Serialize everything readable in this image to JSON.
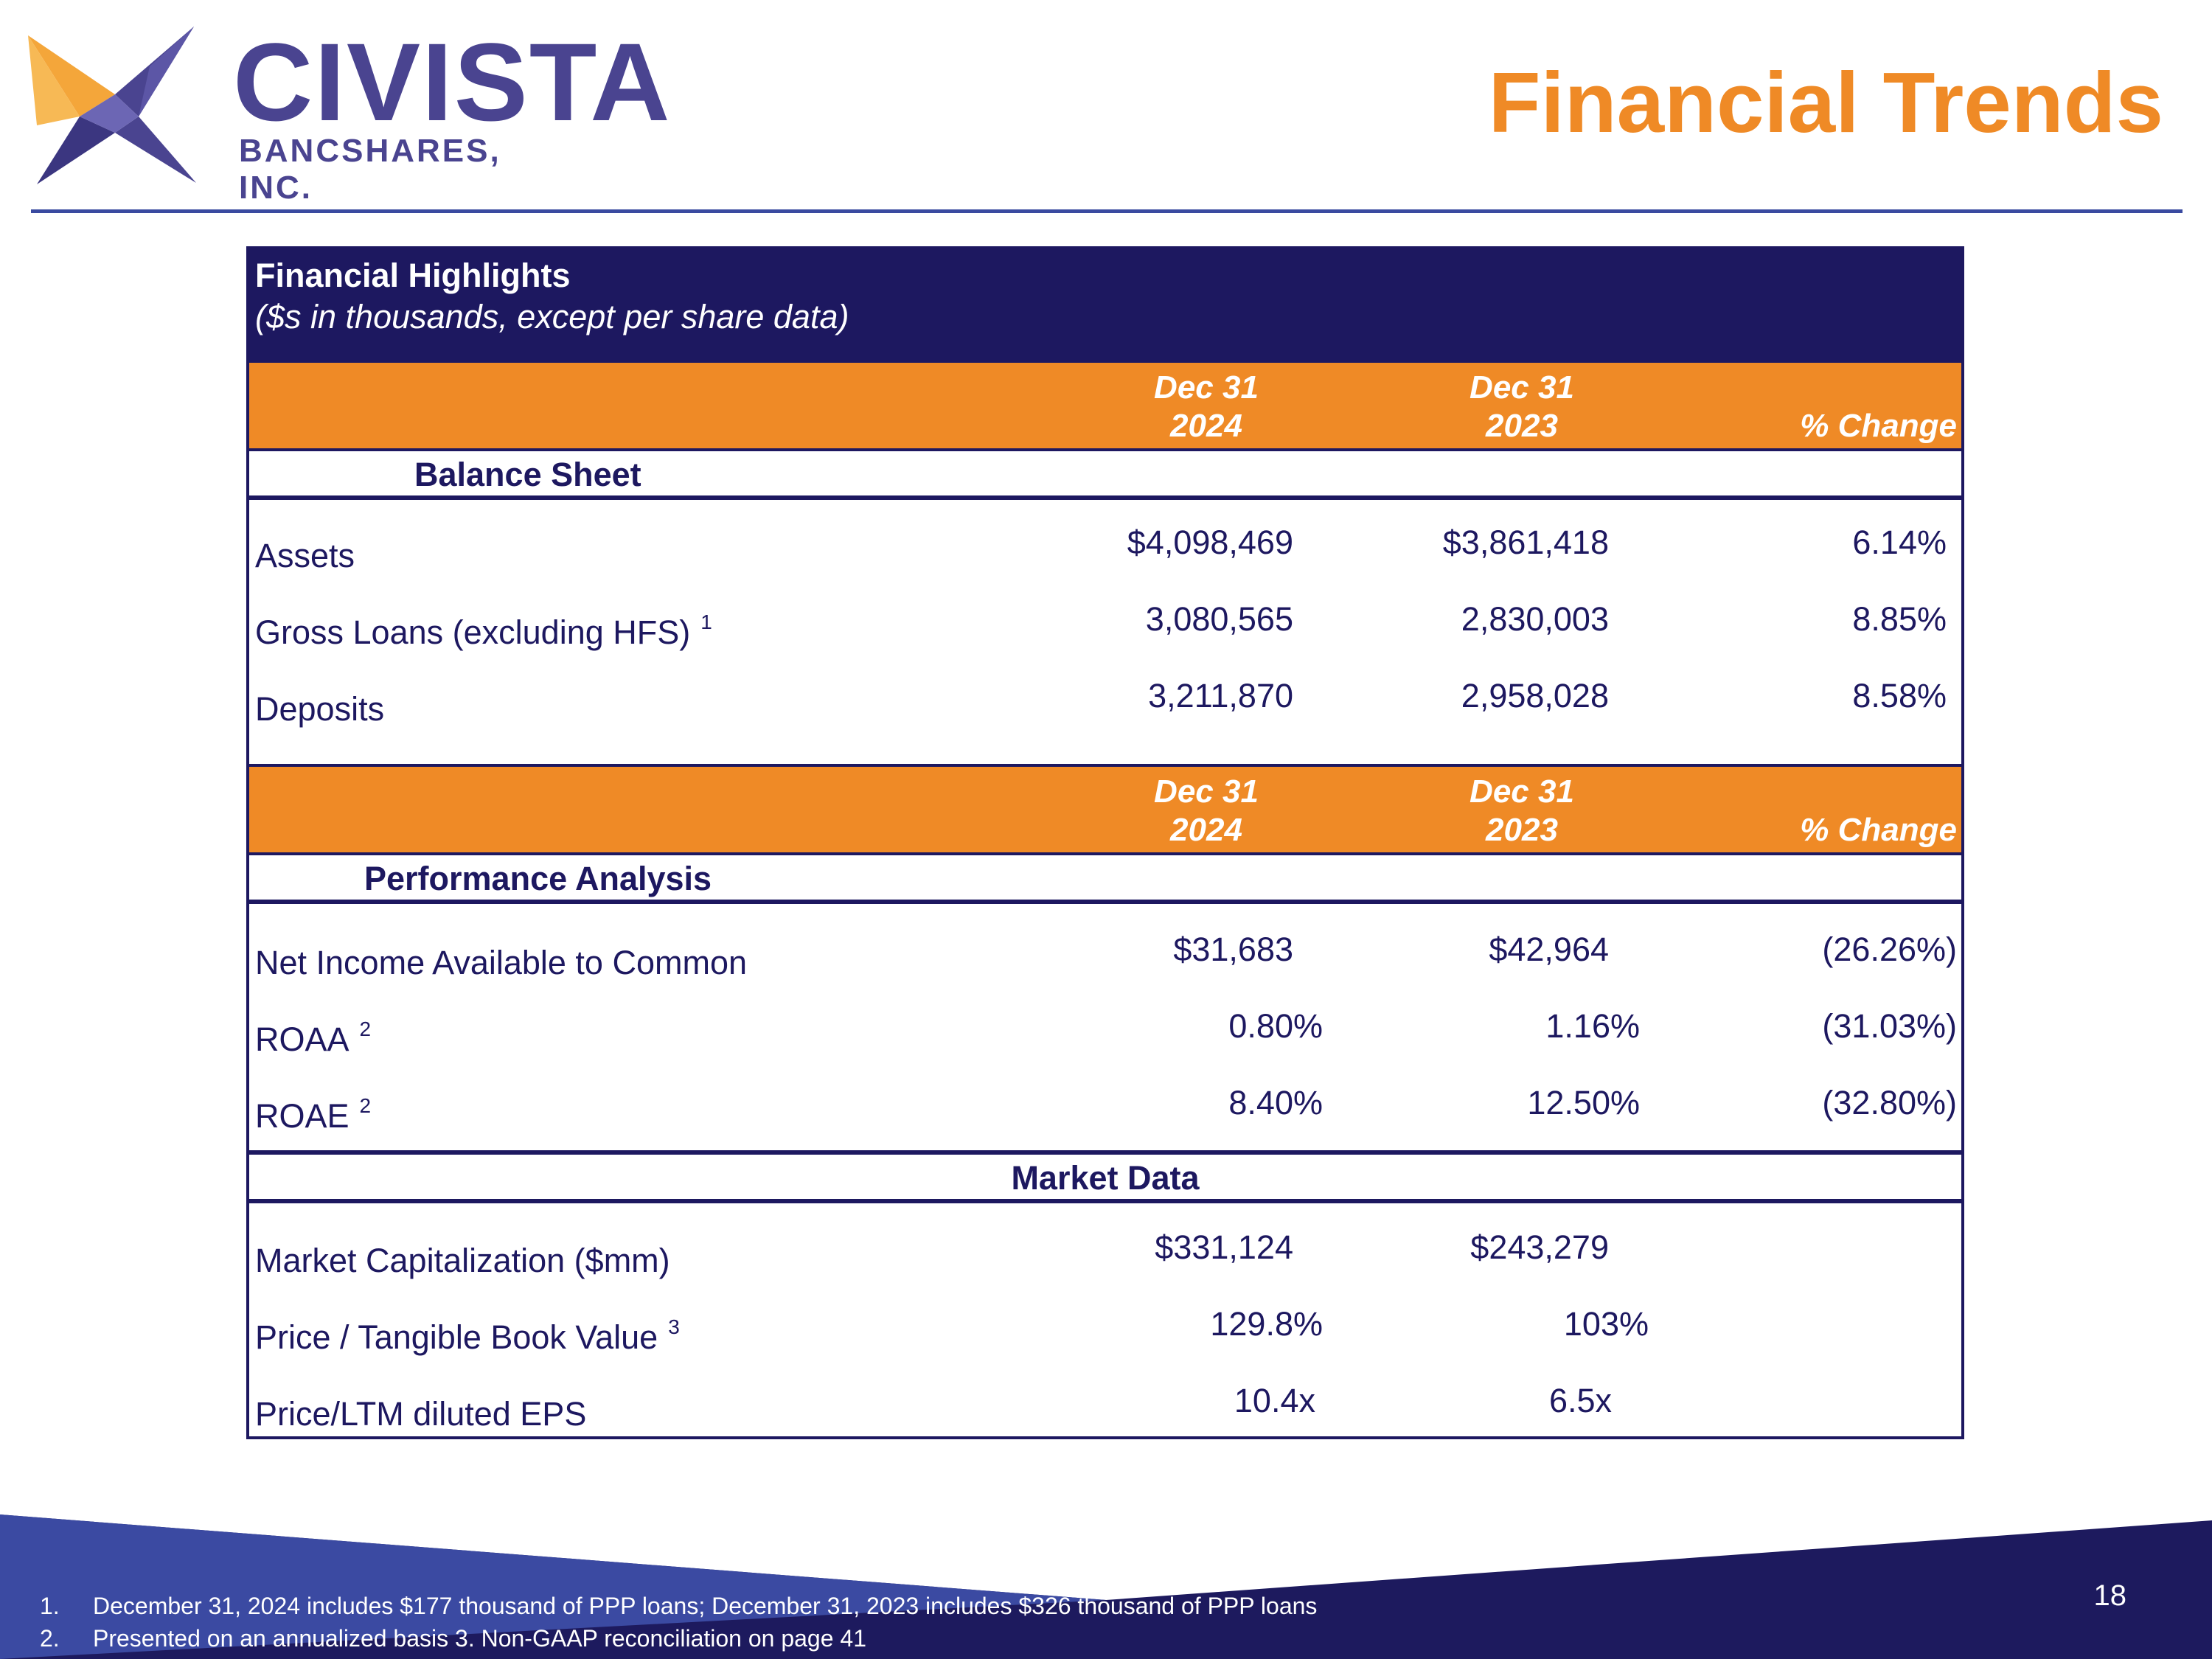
{
  "logo": {
    "name": "CIVISTA",
    "subtitle": "BANCSHARES, INC."
  },
  "page_title": "Financial Trends",
  "table": {
    "title": "Financial Highlights",
    "subtitle": "($s in thousands, except per share data)",
    "period_header": {
      "col1_line1": "Dec 31",
      "col1_line2": "2024",
      "col2_line1": "Dec 31",
      "col2_line2": "2023",
      "change": "% Change"
    },
    "balance_sheet": {
      "heading": "Balance Sheet",
      "rows": [
        {
          "label": "Assets",
          "sup": "",
          "v2024": "$4,098,469",
          "v2023": "$3,861,418",
          "change": "6.14%"
        },
        {
          "label": "Gross Loans (excluding HFS)",
          "sup": "1",
          "v2024": "3,080,565",
          "v2023": "2,830,003",
          "change": "8.85%"
        },
        {
          "label": "Deposits",
          "sup": "",
          "v2024": "3,211,870",
          "v2023": "2,958,028",
          "change": "8.58%"
        }
      ]
    },
    "performance": {
      "heading": "Performance Analysis",
      "rows": [
        {
          "label": "Net Income Available to Common",
          "sup": "",
          "v2024": "$31,683",
          "v2023": "$42,964",
          "change": "(26.26%)"
        },
        {
          "label": "ROAA",
          "sup": "2",
          "v2024": "0.80%",
          "v2023": "1.16%",
          "change": "(31.03%)"
        },
        {
          "label": "ROAE",
          "sup": "2",
          "v2024": "8.40%",
          "v2023": "12.50%",
          "change": "(32.80%)"
        }
      ]
    },
    "market": {
      "heading": "Market Data",
      "rows": [
        {
          "label": "Market Capitalization ($mm)",
          "sup": "",
          "v2024": "$331,124",
          "v2023": "$243,279"
        },
        {
          "label": "Price / Tangible Book Value",
          "sup": "3",
          "v2024": "129.8%",
          "v2023": "103%"
        },
        {
          "label": "Price/LTM diluted EPS",
          "sup": "",
          "v2024": "10.4x",
          "v2023": "6.5x"
        }
      ]
    }
  },
  "footnotes": [
    {
      "num": "1.",
      "text": "December 31, 2024 includes $177 thousand of PPP loans; December 31, 2023 includes $326 thousand of PPP loans"
    },
    {
      "num": "2.",
      "text": "Presented on an annualized basis  3. Non-GAAP reconciliation on page 41"
    }
  ],
  "page_number": "18",
  "colors": {
    "navy": "#1d1860",
    "orange": "#ef8a26",
    "logo_purple": "#4a4490",
    "logo_orange": "#f4a63a",
    "rule_blue": "#3a4aa0"
  }
}
